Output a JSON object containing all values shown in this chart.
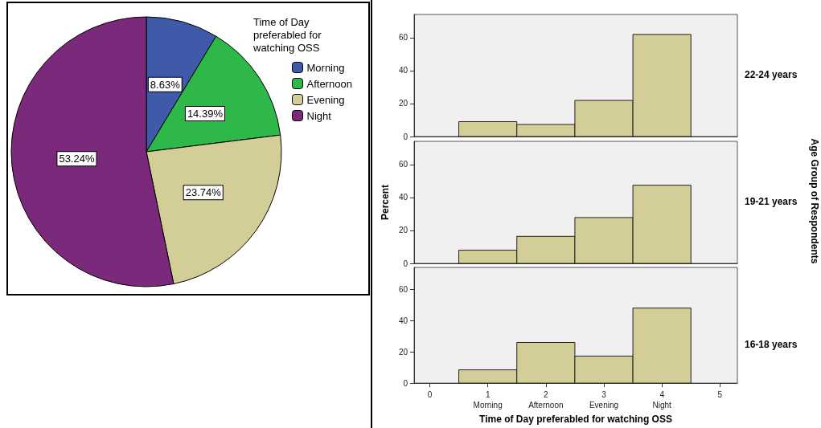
{
  "chart_data": [
    {
      "type": "pie",
      "legend_title": "Time of Day preferabled for watching OSS",
      "categories": [
        "Morning",
        "Afternoon",
        "Evening",
        "Night"
      ],
      "values": [
        8.63,
        14.39,
        23.74,
        53.24
      ],
      "colors": [
        "#3f5aa8",
        "#2eb84a",
        "#d3cd97",
        "#7b2a7b"
      ],
      "value_labels": [
        "8.63%",
        "14.39%",
        "23.74%",
        "53.24%"
      ],
      "legend": "top right"
    },
    {
      "type": "histogram",
      "annotations": [
        "22-24 years"
      ],
      "bins": [
        0.5,
        1.5,
        2.5,
        3.5,
        4.5
      ],
      "values": [
        9.0,
        7.3,
        21.9,
        61.9
      ],
      "color": "#d3cd97",
      "xlim": [
        -0.27,
        5.3
      ],
      "ylim": [
        0,
        74
      ],
      "yticks": [
        0,
        20,
        40,
        60
      ],
      "tick_labels": "y"
    },
    {
      "type": "histogram",
      "ylabel": "Percent",
      "annotations": [
        "19-21 years",
        "Age Group of Respondents"
      ],
      "bins": [
        0.5,
        1.5,
        2.5,
        3.5,
        4.5
      ],
      "values": [
        8.0,
        16.4,
        27.8,
        47.4
      ],
      "color": "#d3cd97",
      "xlim": [
        -0.27,
        5.3
      ],
      "ylim": [
        0,
        74
      ],
      "yticks": [
        0,
        20,
        40,
        60
      ],
      "tick_labels": "y"
    },
    {
      "type": "histogram",
      "annotations": [
        "16-18 years"
      ],
      "xlabel": "Time of Day preferabled for watching OSS",
      "bins": [
        0.5,
        1.5,
        2.5,
        3.5,
        4.5
      ],
      "values": [
        8.5,
        26.0,
        17.3,
        48.0
      ],
      "color": "#d3cd97",
      "xlim": [
        -0.27,
        5.3
      ],
      "xticks": [
        0,
        {
          "value": 1,
          "label": "1\nMorning"
        },
        {
          "value": 2,
          "label": "2\nAfternoon"
        },
        {
          "value": 3,
          "label": "3\nEvening"
        },
        {
          "value": 4,
          "label": "4\nNight"
        },
        5
      ],
      "ylim": [
        0,
        74
      ],
      "yticks": [
        0,
        20,
        40,
        60
      ]
    }
  ]
}
